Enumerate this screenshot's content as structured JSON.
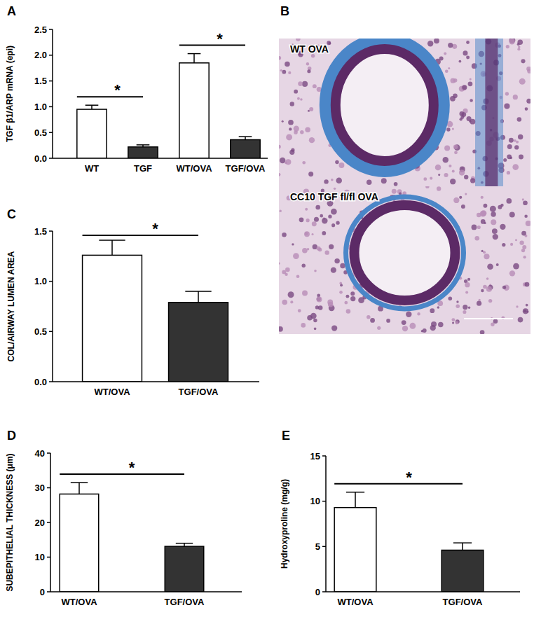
{
  "chart_data": [
    {
      "type": "bar",
      "title": "A",
      "y_label": "TGF β1/ARP mRNA (epi)",
      "categories": [
        "WT",
        "TGF",
        "WT/OVA",
        "TGF/OVA"
      ],
      "values": [
        0.95,
        0.22,
        1.85,
        0.36
      ],
      "errors": [
        0.08,
        0.04,
        0.18,
        0.06
      ],
      "colors": [
        "#ffffff",
        "#333333",
        "#ffffff",
        "#333333"
      ],
      "ylim": [
        0,
        2.5
      ],
      "yticks": [
        {
          "value": 0,
          "label": "0.0"
        },
        {
          "value": 0.5,
          "label": "0.5"
        },
        {
          "value": 1,
          "label": "1.0"
        },
        {
          "value": 1.5,
          "label": "1.5"
        },
        {
          "value": 2,
          "label": "2.0"
        },
        {
          "value": 2.5,
          "label": "2.5"
        }
      ],
      "annotations": [
        {
          "text": "*",
          "between": [
            0,
            1
          ]
        },
        {
          "text": "*",
          "between": [
            2,
            3
          ]
        }
      ]
    },
    {
      "type": "image",
      "title": "B",
      "labels": [
        "WT OVA",
        "CC10 TGF fl/fl OVA"
      ]
    },
    {
      "type": "bar",
      "title": "C",
      "y_label": "COL/AIRWAY LUMEN AREA",
      "categories": [
        "WT/OVA",
        "TGF/OVA"
      ],
      "values": [
        1.26,
        0.79
      ],
      "errors": [
        0.15,
        0.11
      ],
      "colors": [
        "#ffffff",
        "#333333"
      ],
      "ylim": [
        0,
        1.5
      ],
      "yticks": [
        {
          "value": 0,
          "label": "0.0"
        },
        {
          "value": 0.5,
          "label": "0.5"
        },
        {
          "value": 1,
          "label": "1.0"
        },
        {
          "value": 1.5,
          "label": "1.5"
        }
      ],
      "annotations": [
        {
          "text": "*",
          "between": [
            0,
            1
          ]
        }
      ]
    },
    {
      "type": "bar",
      "title": "D",
      "y_label": "SUBEPITHELIAL THICKNESS (μm)",
      "categories": [
        "WT/OVA",
        "TGF/OVA"
      ],
      "values": [
        28.2,
        13.1
      ],
      "errors": [
        3.3,
        0.9
      ],
      "colors": [
        "#ffffff",
        "#333333"
      ],
      "ylim": [
        0,
        40
      ],
      "yticks": [
        0,
        10,
        20,
        30,
        40
      ],
      "annotations": [
        {
          "text": "*",
          "between": [
            0,
            1
          ]
        }
      ]
    },
    {
      "type": "bar",
      "title": "E",
      "y_label": "Hydroxyproline (mg/g)",
      "categories": [
        "WT/OVA",
        "TGF/OVA"
      ],
      "values": [
        9.3,
        4.6
      ],
      "errors": [
        1.7,
        0.8
      ],
      "colors": [
        "#ffffff",
        "#333333"
      ],
      "ylim": [
        0,
        15
      ],
      "yticks": [
        0,
        5,
        10,
        15
      ],
      "annotations": [
        {
          "text": "*",
          "between": [
            0,
            1
          ]
        }
      ]
    }
  ]
}
